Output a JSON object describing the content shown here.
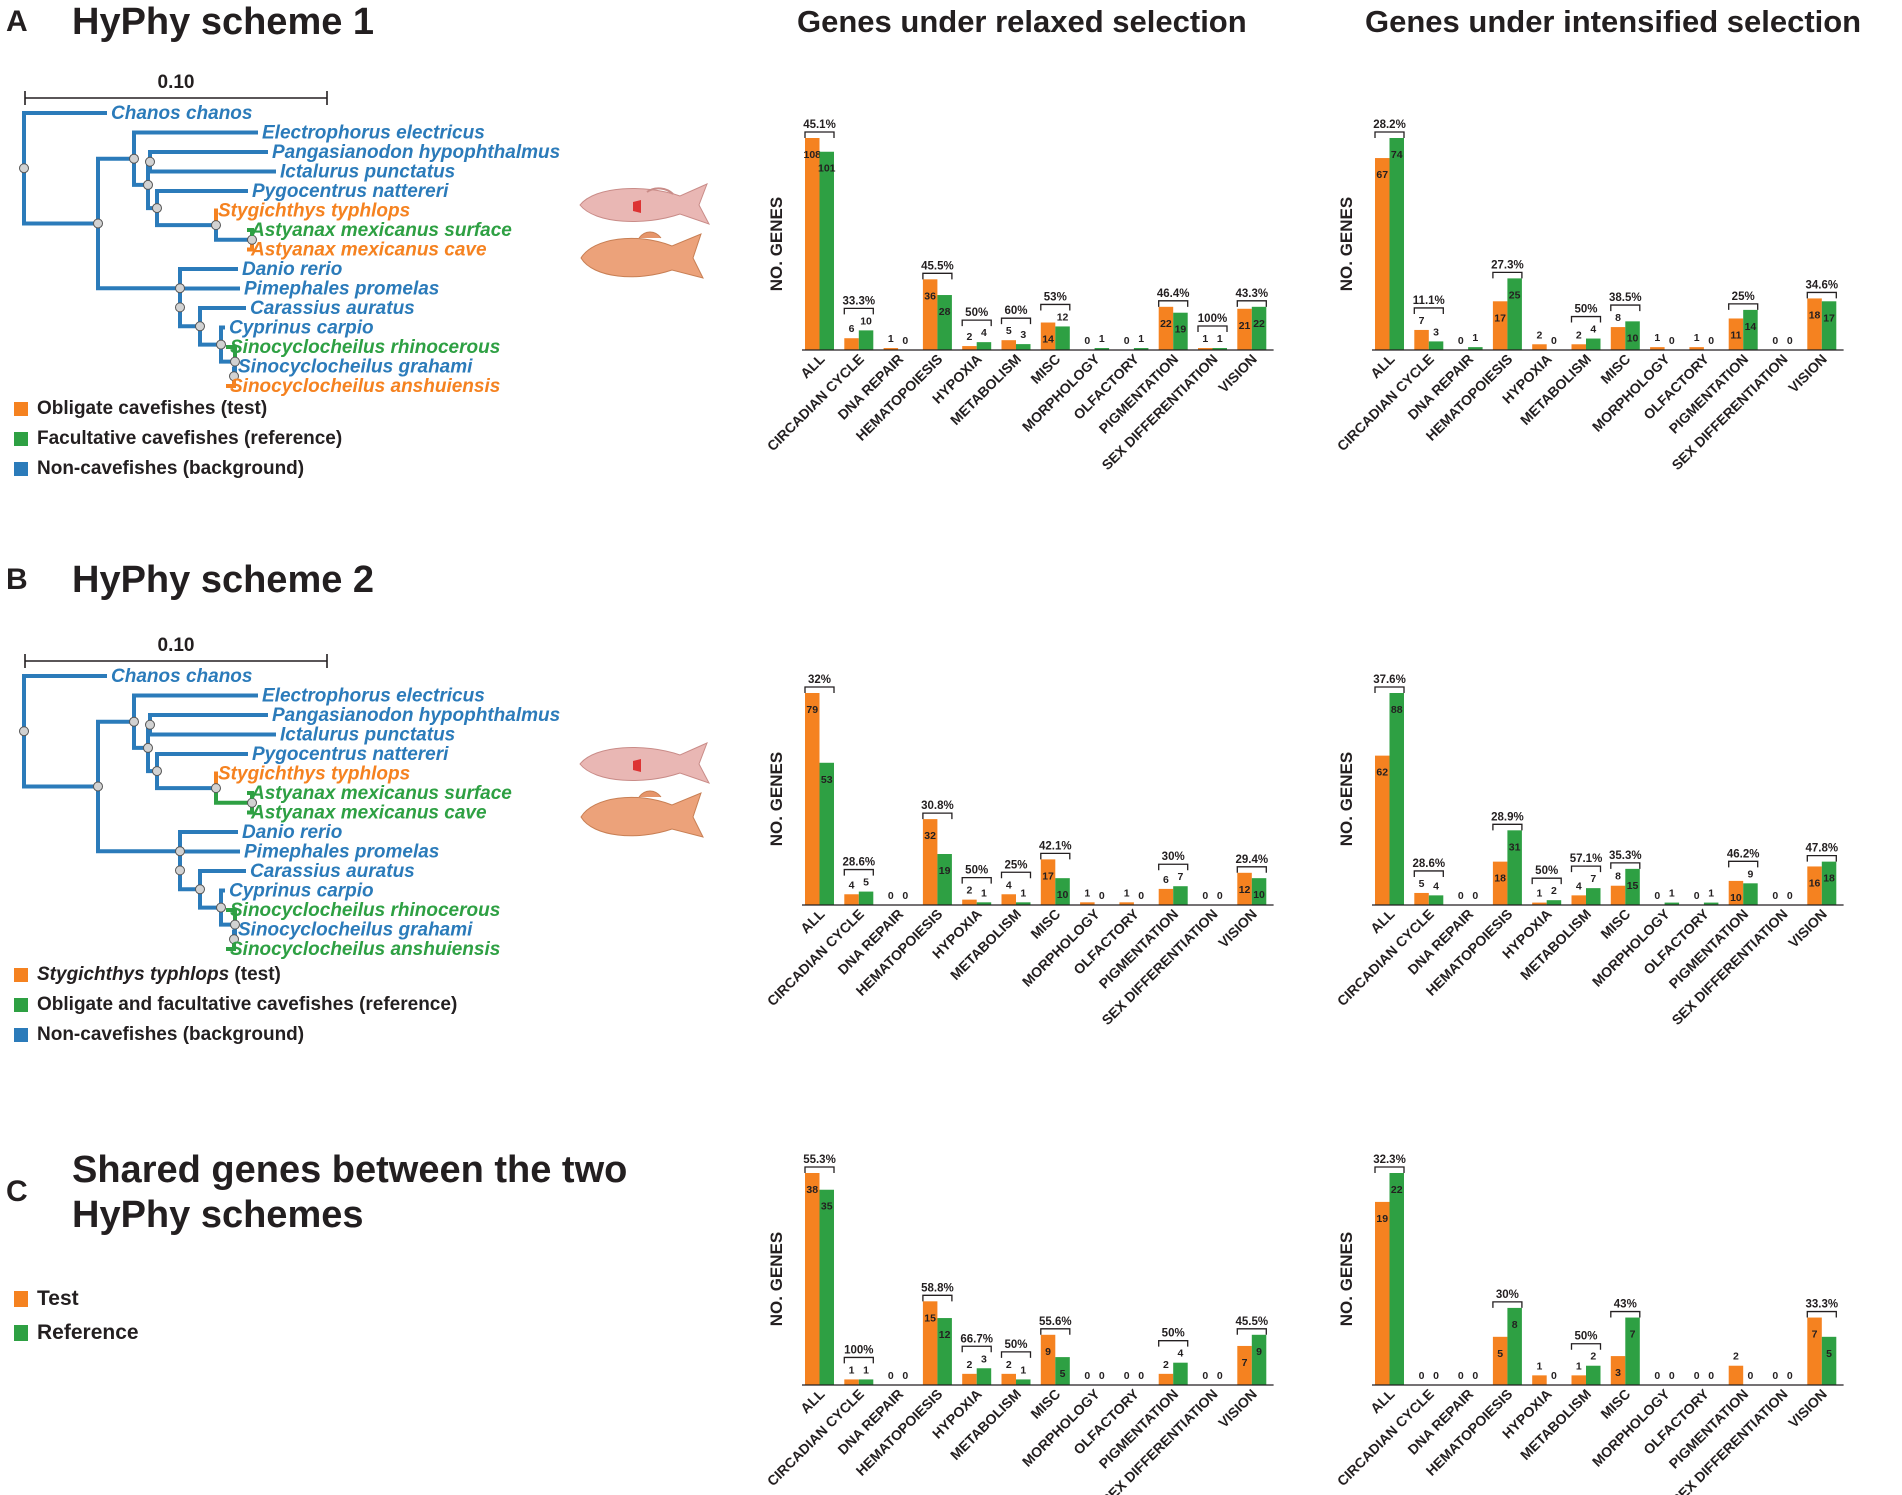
{
  "colors": {
    "test": "#f58220",
    "reference": "#2ea043",
    "background": "#2b7bba",
    "text": "#231f20",
    "node": "#d2d2d2"
  },
  "column_titles": {
    "relaxed": "Genes under relaxed selection",
    "intensified": "Genes under intensified selection"
  },
  "panels": {
    "A": {
      "letter": "A",
      "title": "HyPhy scheme 1",
      "scale_label": "0.10",
      "species": [
        {
          "name": "Chanos chanos",
          "group": "background"
        },
        {
          "name": "Electrophorus electricus",
          "group": "background"
        },
        {
          "name": "Pangasianodon hypophthalmus",
          "group": "background"
        },
        {
          "name": "Ictalurus punctatus",
          "group": "background"
        },
        {
          "name": "Pygocentrus nattereri",
          "group": "background"
        },
        {
          "name": "Stygichthys typhlops",
          "group": "test"
        },
        {
          "name": "Astyanax mexicanus surface",
          "group": "reference"
        },
        {
          "name": "Astyanax mexicanus cave",
          "group": "test"
        },
        {
          "name": "Danio rerio",
          "group": "background"
        },
        {
          "name": "Pimephales promelas",
          "group": "background"
        },
        {
          "name": "Carassius auratus",
          "group": "background"
        },
        {
          "name": "Cyprinus carpio",
          "group": "background"
        },
        {
          "name": "Sinocyclocheilus rhinocerous",
          "group": "reference"
        },
        {
          "name": "Sinocyclocheilus grahami",
          "group": "background"
        },
        {
          "name": "Sinocyclocheilus anshuiensis",
          "group": "test"
        }
      ],
      "legend": [
        {
          "label": "Obligate cavefishes (test)",
          "group": "test"
        },
        {
          "label": "Facultative cavefishes (reference)",
          "group": "reference"
        },
        {
          "label": "Non-cavefishes (background)",
          "group": "background"
        }
      ]
    },
    "B": {
      "letter": "B",
      "title": "HyPhy scheme 2",
      "scale_label": "0.10",
      "species": [
        {
          "name": "Chanos chanos",
          "group": "background"
        },
        {
          "name": "Electrophorus electricus",
          "group": "background"
        },
        {
          "name": "Pangasianodon hypophthalmus",
          "group": "background"
        },
        {
          "name": "Ictalurus punctatus",
          "group": "background"
        },
        {
          "name": "Pygocentrus nattereri",
          "group": "background"
        },
        {
          "name": "Stygichthys typhlops",
          "group": "test"
        },
        {
          "name": "Astyanax mexicanus surface",
          "group": "reference"
        },
        {
          "name": "Astyanax mexicanus cave",
          "group": "reference"
        },
        {
          "name": "Danio rerio",
          "group": "background"
        },
        {
          "name": "Pimephales promelas",
          "group": "background"
        },
        {
          "name": "Carassius auratus",
          "group": "background"
        },
        {
          "name": "Cyprinus carpio",
          "group": "background"
        },
        {
          "name": "Sinocyclocheilus rhinocerous",
          "group": "reference"
        },
        {
          "name": "Sinocyclocheilus grahami",
          "group": "background"
        },
        {
          "name": "Sinocyclocheilus anshuiensis",
          "group": "reference"
        }
      ],
      "legend_italic": "Stygichthys typhlops",
      "legend_suffix": " (test)",
      "legend": [
        {
          "label": "Obligate and facultative cavefishes (reference)",
          "group": "reference"
        },
        {
          "label": "Non-cavefishes (background)",
          "group": "background"
        }
      ]
    },
    "C": {
      "letter": "C",
      "title_line1": "Shared genes between the two",
      "title_line2": "HyPhy schemes",
      "legend": [
        {
          "label": "Test",
          "group": "test"
        },
        {
          "label": "Reference",
          "group": "reference"
        }
      ]
    }
  },
  "chart_data": [
    {
      "id": "A-relaxed",
      "type": "bar",
      "ylabel": "NO. GENES",
      "ymax": 108,
      "categories": [
        "ALL",
        "CIRCADIAN CYCLE",
        "DNA REPAIR",
        "HEMATOPOIESIS",
        "HYPOXIA",
        "METABOLISM",
        "MISC",
        "MORPHOLOGY",
        "OLFACTORY",
        "PIGMENTATION",
        "SEX DIFFERENTIATION",
        "VISION"
      ],
      "series": [
        {
          "name": "Test",
          "values": [
            108,
            6,
            1,
            36,
            2,
            5,
            14,
            0,
            0,
            22,
            1,
            21
          ]
        },
        {
          "name": "Reference",
          "values": [
            101,
            10,
            0,
            28,
            4,
            3,
            12,
            1,
            1,
            19,
            1,
            22
          ]
        }
      ],
      "percent_labels": [
        "45.1%",
        "33.3%",
        "",
        "45.5%",
        "50%",
        "60%",
        "53%",
        "",
        "",
        "46.4%",
        "100%",
        "43.3%"
      ]
    },
    {
      "id": "A-intensified",
      "type": "bar",
      "ylabel": "NO. GENES",
      "ymax": 74,
      "categories": [
        "ALL",
        "CIRCADIAN CYCLE",
        "DNA REPAIR",
        "HEMATOPOIESIS",
        "HYPOXIA",
        "METABOLISM",
        "MISC",
        "MORPHOLOGY",
        "OLFACTORY",
        "PIGMENTATION",
        "SEX DIFFERENTIATION",
        "VISION"
      ],
      "series": [
        {
          "name": "Test",
          "values": [
            67,
            7,
            0,
            17,
            2,
            2,
            8,
            1,
            1,
            11,
            0,
            18
          ]
        },
        {
          "name": "Reference",
          "values": [
            74,
            3,
            1,
            25,
            0,
            4,
            10,
            0,
            0,
            14,
            0,
            17
          ]
        }
      ],
      "percent_labels": [
        "28.2%",
        "11.1%",
        "",
        "27.3%",
        "",
        "50%",
        "38.5%",
        "",
        "",
        "25%",
        "",
        "34.6%"
      ]
    },
    {
      "id": "B-relaxed",
      "type": "bar",
      "ylabel": "NO. GENES",
      "ymax": 79,
      "categories": [
        "ALL",
        "CIRCADIAN CYCLE",
        "DNA REPAIR",
        "HEMATOPOIESIS",
        "HYPOXIA",
        "METABOLISM",
        "MISC",
        "MORPHOLOGY",
        "OLFACTORY",
        "PIGMENTATION",
        "SEX DIFFERENTIATION",
        "VISION"
      ],
      "series": [
        {
          "name": "Test",
          "values": [
            79,
            4,
            0,
            32,
            2,
            4,
            17,
            1,
            1,
            6,
            0,
            12
          ]
        },
        {
          "name": "Reference",
          "values": [
            53,
            5,
            0,
            19,
            1,
            1,
            10,
            0,
            0,
            7,
            0,
            10
          ]
        }
      ],
      "percent_labels": [
        "32%",
        "28.6%",
        "",
        "30.8%",
        "50%",
        "25%",
        "42.1%",
        "",
        "",
        "30%",
        "",
        "29.4%"
      ]
    },
    {
      "id": "B-intensified",
      "type": "bar",
      "ylabel": "NO. GENES",
      "ymax": 88,
      "categories": [
        "ALL",
        "CIRCADIAN CYCLE",
        "DNA REPAIR",
        "HEMATOPOIESIS",
        "HYPOXIA",
        "METABOLISM",
        "MISC",
        "MORPHOLOGY",
        "OLFACTORY",
        "PIGMENTATION",
        "SEX DIFFERENTIATION",
        "VISION"
      ],
      "series": [
        {
          "name": "Test",
          "values": [
            62,
            5,
            0,
            18,
            1,
            4,
            8,
            0,
            0,
            10,
            0,
            16
          ]
        },
        {
          "name": "Reference",
          "values": [
            88,
            4,
            0,
            31,
            2,
            7,
            15,
            1,
            1,
            9,
            0,
            18
          ]
        }
      ],
      "percent_labels": [
        "37.6%",
        "28.6%",
        "",
        "28.9%",
        "50%",
        "57.1%",
        "35.3%",
        "",
        "",
        "46.2%",
        "",
        "47.8%"
      ]
    },
    {
      "id": "C-relaxed",
      "type": "bar",
      "ylabel": "NO. GENES",
      "ymax": 38,
      "categories": [
        "ALL",
        "CIRCADIAN CYCLE",
        "DNA REPAIR",
        "HEMATOPOIESIS",
        "HYPOXIA",
        "METABOLISM",
        "MISC",
        "MORPHOLOGY",
        "OLFACTORY",
        "PIGMENTATION",
        "SEX DIFFERENTIATION",
        "VISION"
      ],
      "series": [
        {
          "name": "Test",
          "values": [
            38,
            1,
            0,
            15,
            2,
            2,
            9,
            0,
            0,
            2,
            0,
            7
          ]
        },
        {
          "name": "Reference",
          "values": [
            35,
            1,
            0,
            12,
            3,
            1,
            5,
            0,
            0,
            4,
            0,
            9
          ]
        }
      ],
      "percent_labels": [
        "55.3%",
        "100%",
        "",
        "58.8%",
        "66.7%",
        "50%",
        "55.6%",
        "",
        "",
        "50%",
        "",
        "45.5%"
      ]
    },
    {
      "id": "C-intensified",
      "type": "bar",
      "ylabel": "NO. GENES",
      "ymax": 22,
      "categories": [
        "ALL",
        "CIRCADIAN CYCLE",
        "DNA REPAIR",
        "HEMATOPOIESIS",
        "HYPOXIA",
        "METABOLISM",
        "MISC",
        "MORPHOLOGY",
        "OLFACTORY",
        "PIGMENTATION",
        "SEX DIFFERENTIATION",
        "VISION"
      ],
      "series": [
        {
          "name": "Test",
          "values": [
            19,
            0,
            0,
            5,
            1,
            1,
            3,
            0,
            0,
            2,
            0,
            7
          ]
        },
        {
          "name": "Reference",
          "values": [
            22,
            0,
            0,
            8,
            0,
            2,
            7,
            0,
            0,
            0,
            0,
            5
          ]
        }
      ],
      "percent_labels": [
        "32.3%",
        "",
        "",
        "30%",
        "",
        "50%",
        "43%",
        "",
        "",
        "",
        "",
        "33.3%"
      ]
    }
  ]
}
